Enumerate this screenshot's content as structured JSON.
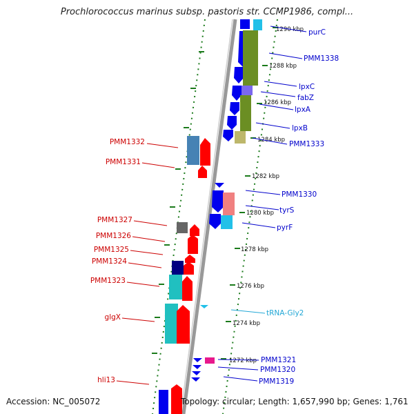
{
  "title": "Prochlorococcus marinus subsp. pastoris str. CCMP1986, compl...",
  "footer": {
    "accession": "Accession: NC_005072",
    "info": "Topology: circular; Length: 1,657,990 bp; Genes: 1,761"
  },
  "colors": {
    "backbone": "#999999",
    "dots": "#1a7a1a",
    "left_label": "#cc0000",
    "right_label": "#0000cc",
    "trna_label": "#22a7d6"
  },
  "kbp_ticks": [
    "1290 kbp",
    "1288 kbp",
    "1286 kbp",
    "1284 kbp",
    "1282 kbp",
    "1280 kbp",
    "1278 kbp",
    "1276 kbp",
    "1274 kbp",
    "1272 kbp"
  ],
  "left_labels": [
    "PMM1332",
    "PMM1331",
    "PMM1327",
    "PMM1326",
    "PMM1325",
    "PMM1324",
    "PMM1323",
    "glgX",
    "hli13"
  ],
  "right_labels": [
    "purC",
    "PMM1338",
    "lpxC",
    "fabZ",
    "lpxA",
    "lpxB",
    "PMM1333",
    "PMM1330",
    "tyrS",
    "pyrF",
    "PMM1321",
    "PMM1320",
    "PMM1319"
  ],
  "trna_label": "tRNA-Gly2"
}
